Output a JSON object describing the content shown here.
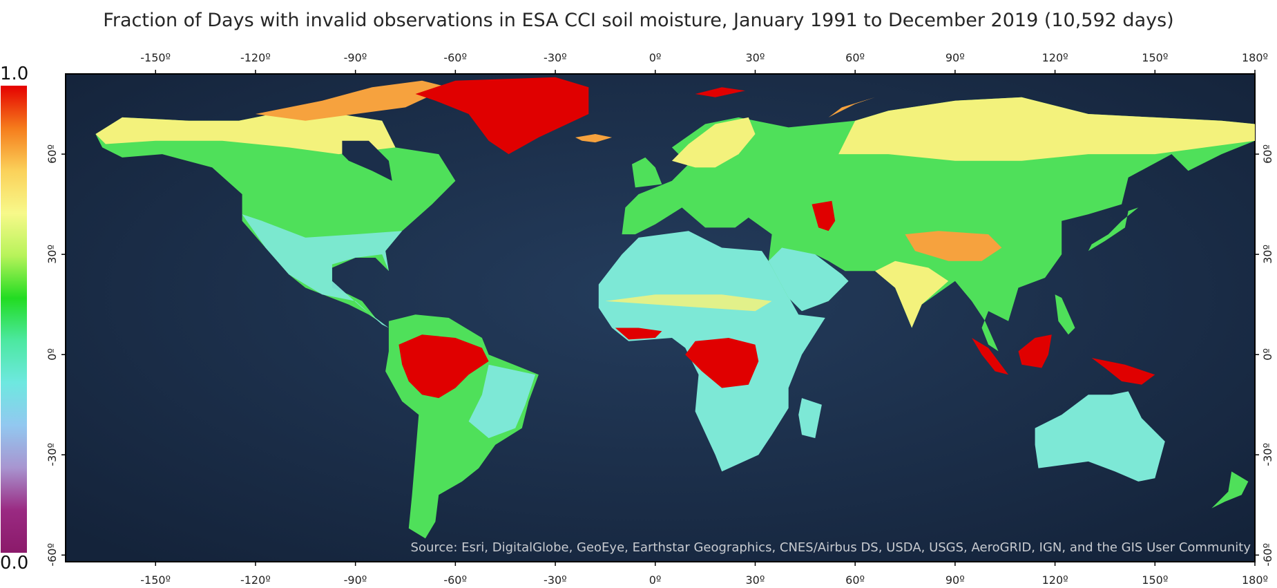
{
  "title": "Fraction of Days with invalid observations in ESA CCI soil moisture, January 1991 to December 2019 (10,592 days)",
  "lon_ticks": [
    "-150º",
    "-120º",
    "-90º",
    "-60º",
    "-30º",
    "0º",
    "30º",
    "60º",
    "90º",
    "120º",
    "150º",
    "180º"
  ],
  "lat_ticks": [
    "60º",
    "30º",
    "0º",
    "-30º",
    "-60º"
  ],
  "colorbar": {
    "max_label": "1.0",
    "min_label": "0.0",
    "colors": [
      "#e50000",
      "#f57c1c",
      "#fbd15a",
      "#f7f98a",
      "#b7f35a",
      "#22dc22",
      "#4ce8a0",
      "#6ee8e0",
      "#92c8f0",
      "#a895d0",
      "#9a2a82",
      "#8b1a6a"
    ]
  },
  "source": "Source: Esri, DigitalGlobe, GeoEye, Earthstar Geographics, CNES/Airbus DS, USDA, USGS, AeroGRID, IGN, and the GIS User Community",
  "colors": {
    "ocean": "#1b2e4a",
    "ocean_light": "#2a4566",
    "land_low": "#7de8d6",
    "land_mid": "#4fe05a",
    "land_high": "#f3f27c",
    "land_very_high": "#f6a23e",
    "invalid": "#e00000"
  }
}
